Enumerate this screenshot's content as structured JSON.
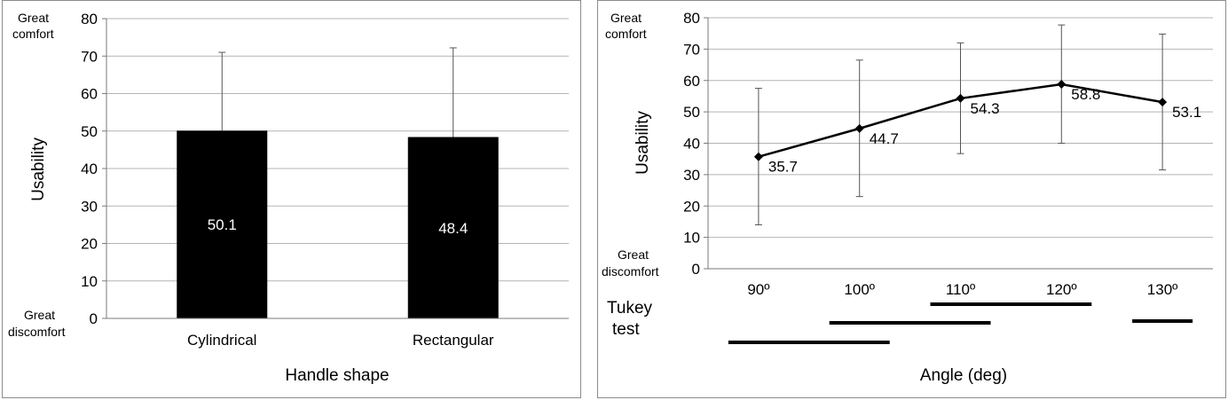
{
  "colors": {
    "grid": "#b4b4b4",
    "bar": "#000000",
    "line": "#000000",
    "border": "#8c8c8c",
    "bar_label": "#ffffff"
  },
  "chart_data": [
    {
      "type": "bar",
      "xlabel": "Handle shape",
      "ylabel": "Usability",
      "ylim": [
        0,
        80
      ],
      "yticks": [
        0,
        10,
        20,
        30,
        40,
        50,
        60,
        70,
        80
      ],
      "grid": true,
      "categories": [
        "Cylindrical",
        "Rectangular"
      ],
      "values": [
        50.1,
        48.4
      ],
      "value_labels": [
        "50.1",
        "48.4"
      ],
      "error_upper": [
        71.0,
        72.2
      ],
      "annotations": {
        "top": [
          "Great",
          "comfort"
        ],
        "bottom": [
          "Great",
          "discomfort"
        ]
      }
    },
    {
      "type": "line",
      "xlabel": "Angle (deg)",
      "ylabel": "Usability",
      "ylim": [
        0,
        80
      ],
      "yticks": [
        0,
        10,
        20,
        30,
        40,
        50,
        60,
        70,
        80
      ],
      "grid": true,
      "categories": [
        "90º",
        "100º",
        "110º",
        "120º",
        "130º"
      ],
      "values": [
        35.7,
        44.7,
        54.3,
        58.8,
        53.1
      ],
      "value_labels": [
        "35.7",
        "44.7",
        "54.3",
        "58.8",
        "53.1"
      ],
      "error_lower": [
        14.0,
        23.0,
        36.7,
        40.0,
        31.5
      ],
      "error_upper": [
        57.5,
        66.5,
        72.0,
        77.7,
        74.8
      ],
      "annotations": {
        "top": [
          "Great",
          "comfort"
        ],
        "bottom": [
          "Great",
          "discomfort"
        ]
      },
      "tukey": {
        "label": [
          "Tukey",
          "test"
        ],
        "groups": [
          {
            "from": 2,
            "to": 3
          },
          {
            "from": 1,
            "to": 2
          },
          {
            "from": 4,
            "to": 4
          },
          {
            "from": 0,
            "to": 1
          }
        ]
      }
    }
  ]
}
